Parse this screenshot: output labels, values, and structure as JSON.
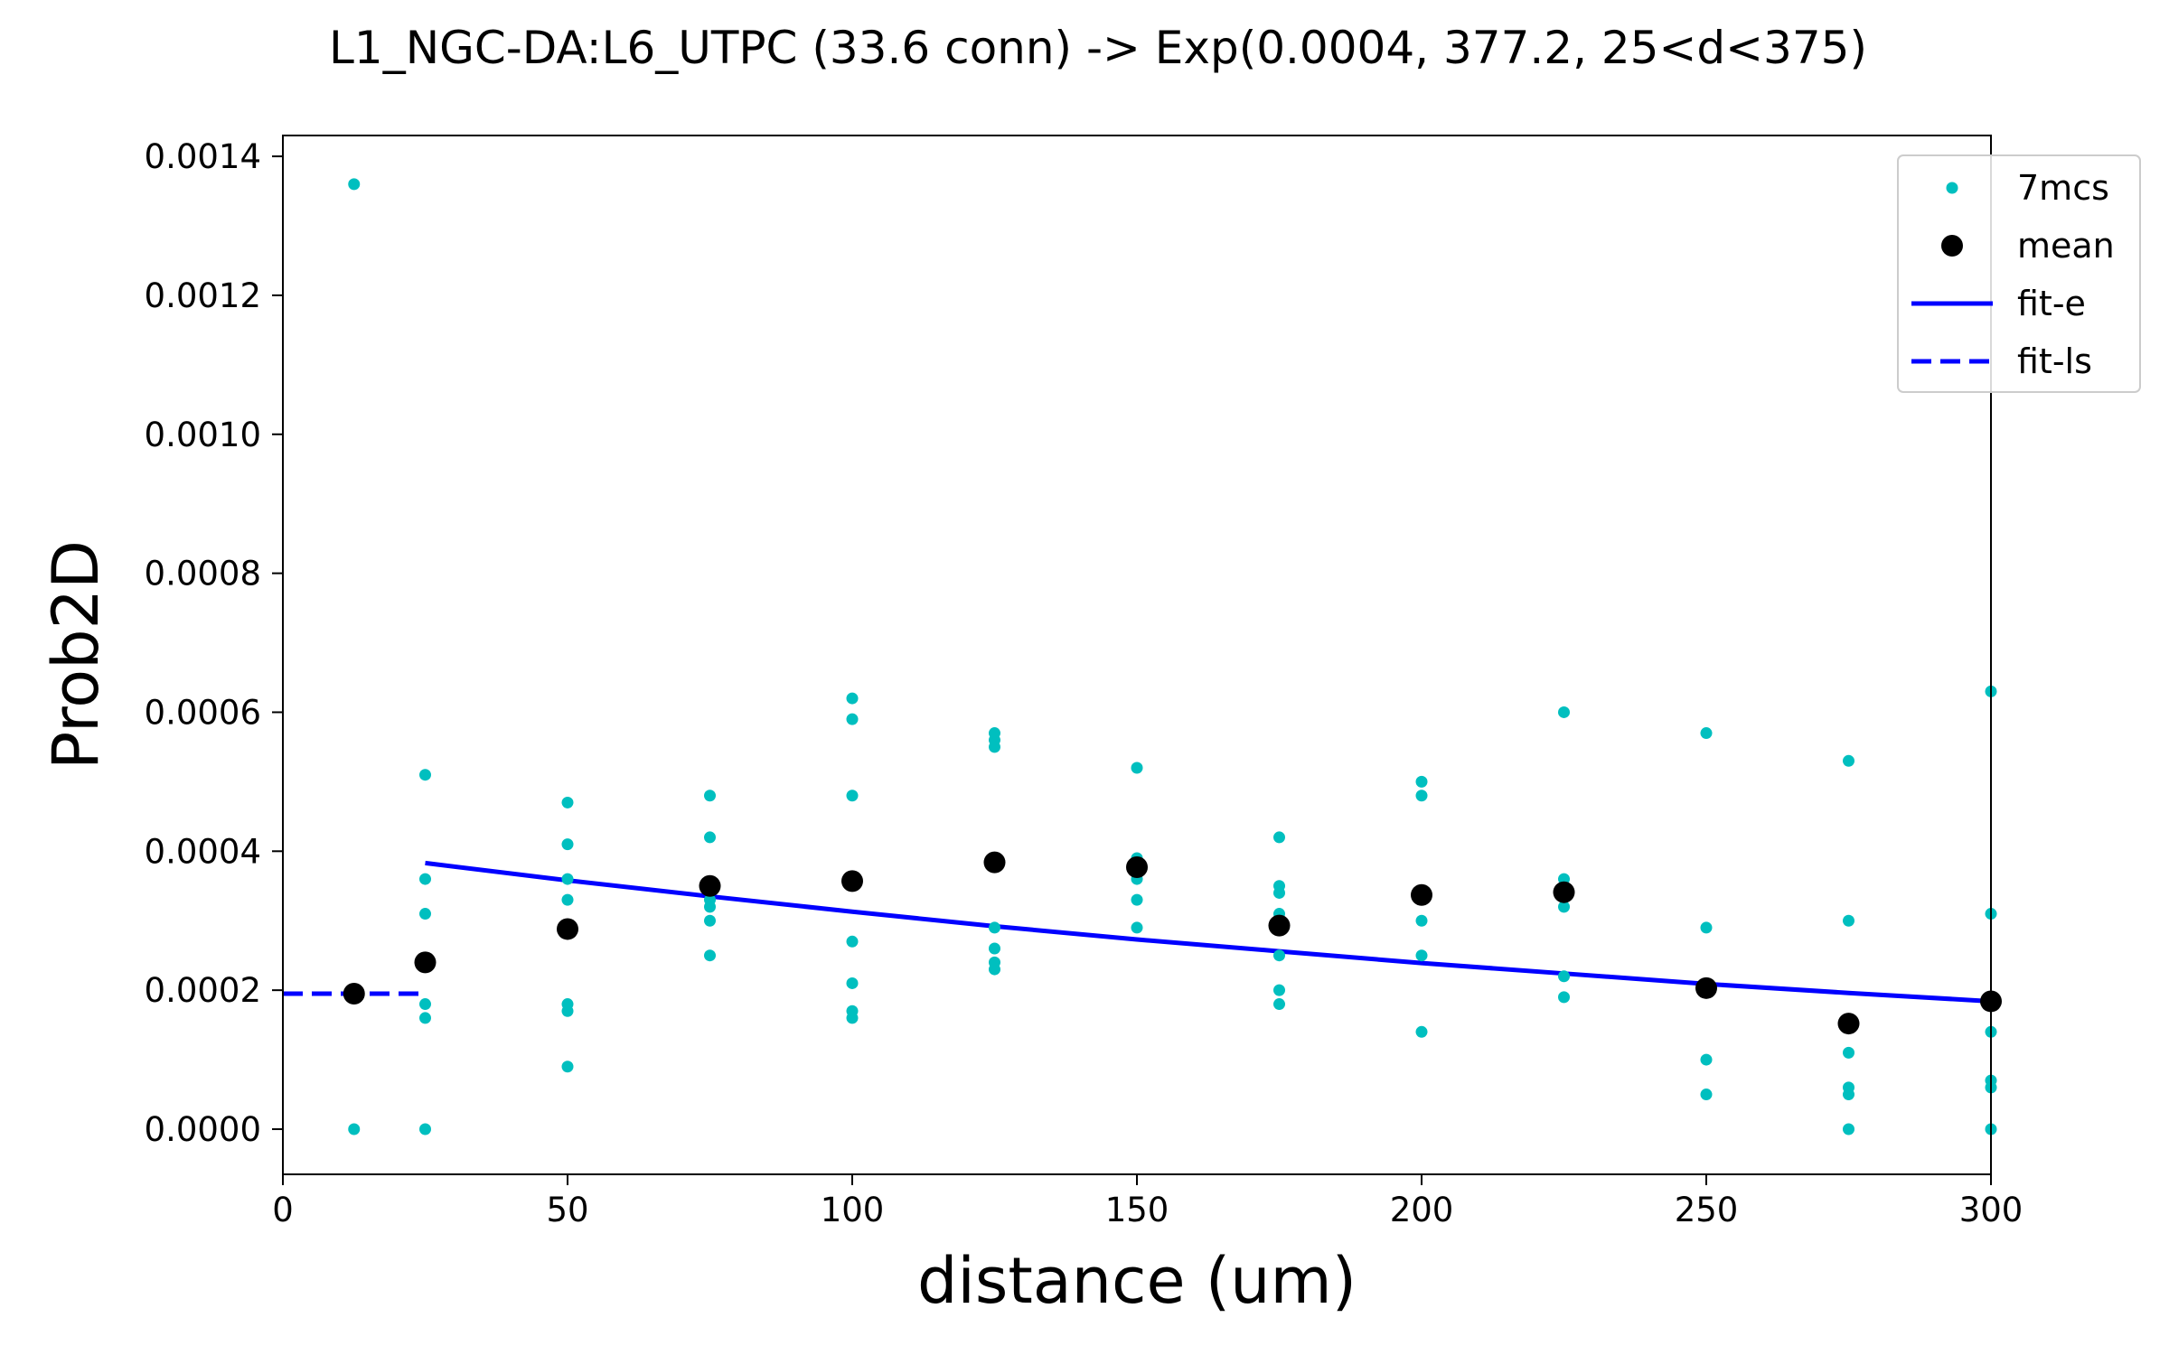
{
  "chart_data": {
    "type": "scatter",
    "title": "L1_NGC-DA:L6_UTPC (33.6 conn) -> Exp(0.0004, 377.2, 25<d<375)",
    "xlabel": "distance (um)",
    "ylabel": "Prob2D",
    "xlim": [
      0,
      300
    ],
    "ylim": [
      -6.5e-05,
      0.00143
    ],
    "x_ticks": [
      0,
      50,
      100,
      150,
      200,
      250,
      300
    ],
    "x_tick_labels": [
      "0",
      "50",
      "100",
      "150",
      "200",
      "250",
      "300"
    ],
    "y_ticks": [
      0.0,
      0.0002,
      0.0004,
      0.0006,
      0.0008,
      0.001,
      0.0012,
      0.0014
    ],
    "y_tick_labels": [
      "0.0000",
      "0.0002",
      "0.0004",
      "0.0006",
      "0.0008",
      "0.0010",
      "0.0012",
      "0.0014"
    ],
    "grid": false,
    "legend_position": "top-right",
    "series": [
      {
        "name": "7mcs",
        "kind": "points",
        "color": "#00bfbf",
        "points": [
          [
            12.5,
            0.00136
          ],
          [
            12.5,
            0.0
          ],
          [
            25,
            0.00051
          ],
          [
            25,
            0.00036
          ],
          [
            25,
            0.00031
          ],
          [
            25,
            0.00018
          ],
          [
            25,
            0.00016
          ],
          [
            25,
            0.0
          ],
          [
            50,
            0.00047
          ],
          [
            50,
            0.00041
          ],
          [
            50,
            0.00036
          ],
          [
            50,
            0.00033
          ],
          [
            50,
            0.00018
          ],
          [
            50,
            0.00017
          ],
          [
            50,
            9e-05
          ],
          [
            75,
            0.00048
          ],
          [
            75,
            0.00042
          ],
          [
            75,
            0.00035
          ],
          [
            75,
            0.00033
          ],
          [
            75,
            0.00032
          ],
          [
            75,
            0.0003
          ],
          [
            75,
            0.00025
          ],
          [
            100,
            0.00062
          ],
          [
            100,
            0.00059
          ],
          [
            100,
            0.00048
          ],
          [
            100,
            0.00036
          ],
          [
            100,
            0.00027
          ],
          [
            100,
            0.00021
          ],
          [
            100,
            0.00017
          ],
          [
            100,
            0.00016
          ],
          [
            125,
            0.00057
          ],
          [
            125,
            0.00056
          ],
          [
            125,
            0.00055
          ],
          [
            125,
            0.00029
          ],
          [
            125,
            0.00026
          ],
          [
            125,
            0.00024
          ],
          [
            125,
            0.00023
          ],
          [
            150,
            0.00052
          ],
          [
            150,
            0.00039
          ],
          [
            150,
            0.00036
          ],
          [
            150,
            0.00033
          ],
          [
            150,
            0.00029
          ],
          [
            175,
            0.00042
          ],
          [
            175,
            0.00035
          ],
          [
            175,
            0.00034
          ],
          [
            175,
            0.00031
          ],
          [
            175,
            0.00025
          ],
          [
            175,
            0.0002
          ],
          [
            175,
            0.00018
          ],
          [
            200,
            0.0005
          ],
          [
            200,
            0.00048
          ],
          [
            200,
            0.00034
          ],
          [
            200,
            0.0003
          ],
          [
            200,
            0.00025
          ],
          [
            200,
            0.00014
          ],
          [
            225,
            0.0006
          ],
          [
            225,
            0.00036
          ],
          [
            225,
            0.00032
          ],
          [
            225,
            0.00022
          ],
          [
            225,
            0.00019
          ],
          [
            250,
            0.00057
          ],
          [
            250,
            0.00029
          ],
          [
            250,
            0.0001
          ],
          [
            250,
            5e-05
          ],
          [
            275,
            0.00053
          ],
          [
            275,
            0.0003
          ],
          [
            275,
            0.00011
          ],
          [
            275,
            6e-05
          ],
          [
            275,
            5e-05
          ],
          [
            275,
            0.0
          ],
          [
            300,
            0.00063
          ],
          [
            300,
            0.00031
          ],
          [
            300,
            0.00014
          ],
          [
            300,
            7e-05
          ],
          [
            300,
            6e-05
          ],
          [
            300,
            0.0
          ]
        ]
      },
      {
        "name": "mean",
        "kind": "points",
        "color": "#000000",
        "points": [
          [
            12.5,
            0.000195
          ],
          [
            25,
            0.00024
          ],
          [
            50,
            0.000288
          ],
          [
            75,
            0.00035
          ],
          [
            100,
            0.000357
          ],
          [
            125,
            0.000384
          ],
          [
            150,
            0.000377
          ],
          [
            175,
            0.000293
          ],
          [
            200,
            0.000337
          ],
          [
            225,
            0.000341
          ],
          [
            250,
            0.000203
          ],
          [
            275,
            0.000152
          ],
          [
            300,
            0.000184
          ]
        ]
      },
      {
        "name": "fit-e",
        "kind": "line",
        "style": "solid",
        "color": "#0000ff",
        "line": [
          [
            25,
            0.000383
          ],
          [
            50,
            0.000358
          ],
          [
            75,
            0.000335
          ],
          [
            100,
            0.000313
          ],
          [
            125,
            0.000292
          ],
          [
            150,
            0.000273
          ],
          [
            175,
            0.000256
          ],
          [
            200,
            0.000239
          ],
          [
            225,
            0.000224
          ],
          [
            250,
            0.000209
          ],
          [
            275,
            0.000196
          ],
          [
            300,
            0.000184
          ]
        ]
      },
      {
        "name": "fit-ls",
        "kind": "line",
        "style": "dashed",
        "color": "#0000ff",
        "line": [
          [
            0,
            0.000195
          ],
          [
            25,
            0.000195
          ]
        ]
      }
    ]
  }
}
